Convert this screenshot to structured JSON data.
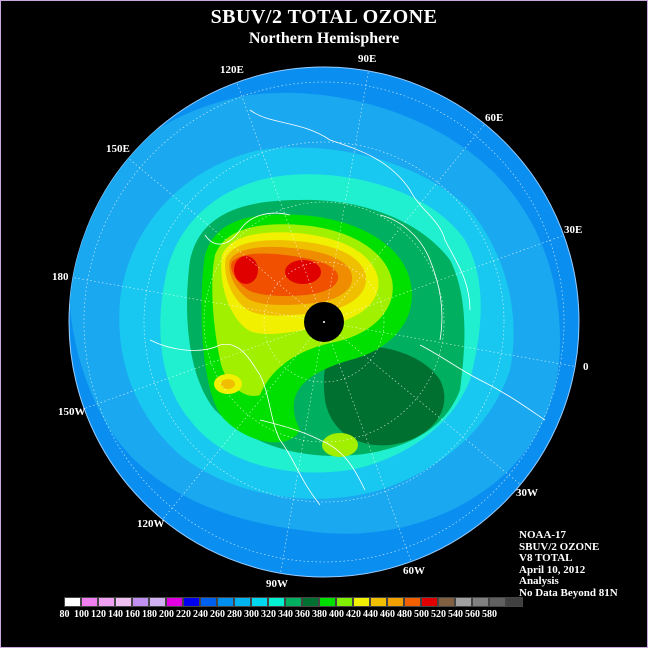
{
  "header": {
    "title": "SBUV/2 TOTAL OZONE",
    "subtitle": "Northern Hemisphere"
  },
  "longitude_labels": [
    "120E",
    "90E",
    "60E",
    "150E",
    "30E",
    "180",
    "0",
    "150W",
    "30W",
    "120W",
    "60W",
    "90W"
  ],
  "info": {
    "lines": [
      "NOAA-17",
      "SBUV/2 OZONE",
      "V8 TOTAL",
      "April 10, 2012",
      "Analysis",
      "No Data Beyond 81N"
    ]
  },
  "legend": {
    "ticks": [
      "80",
      "100",
      "120",
      "140",
      "160",
      "180",
      "200",
      "220",
      "240",
      "260",
      "280",
      "300",
      "320",
      "340",
      "360",
      "380",
      "400",
      "420",
      "440",
      "460",
      "480",
      "500",
      "520",
      "540",
      "560",
      "580"
    ],
    "colors": [
      "#ffffff",
      "#f080f0",
      "#f0a0f0",
      "#f0c0f0",
      "#c090f0",
      "#d0b0f0",
      "#e000e0",
      "#0000f0",
      "#0060f0",
      "#0090f0",
      "#00b4f0",
      "#00d8f0",
      "#00f0d0",
      "#00b060",
      "#007030",
      "#00e000",
      "#80f000",
      "#f0f000",
      "#f0c000",
      "#f0a000",
      "#f06000",
      "#e00000",
      "#806040",
      "#a0a0a0",
      "#808080",
      "#606060",
      "#404040"
    ]
  },
  "colors": {
    "background": "#000000",
    "ocean_low": "#1aa2f0",
    "high": "#e00000",
    "polar_no_data": "#000000"
  }
}
